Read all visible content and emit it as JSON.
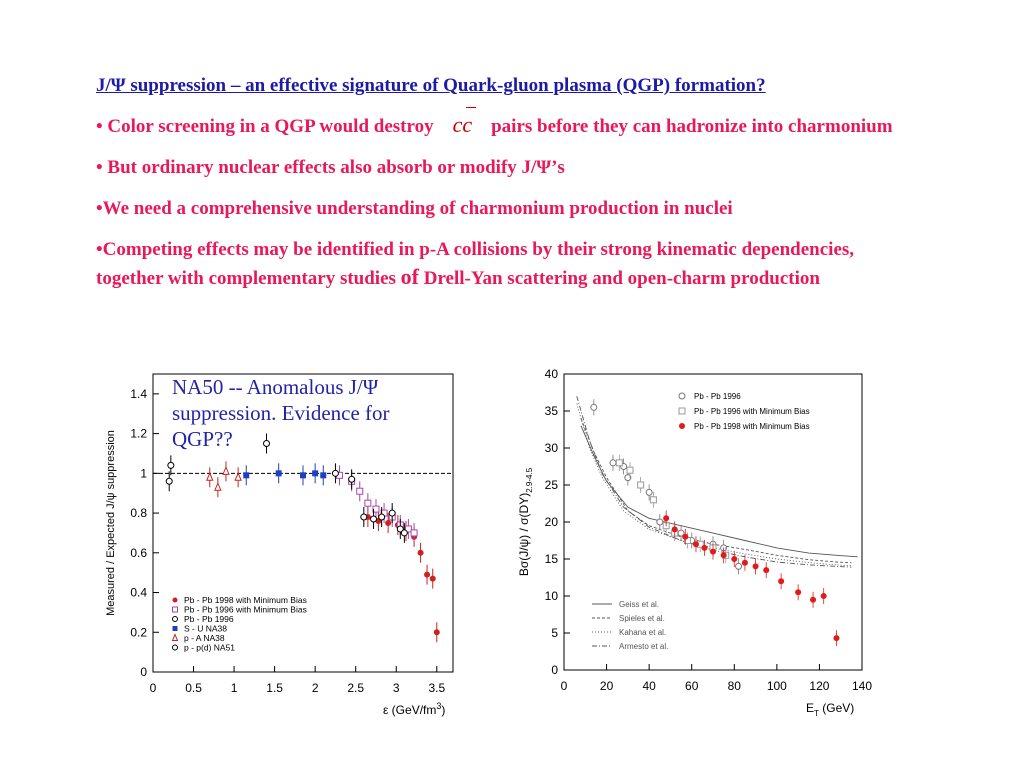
{
  "text": {
    "title": "J/Ψ suppression – an effective signature of Quark-gluon plasma (QGP) formation?",
    "b1_pre": "• Color screening in a QGP would destroy",
    "b1_cc": "cc",
    "b1_post": "pairs before they can hadronize into charmonium",
    "b2": "• But ordinary nuclear effects also absorb or modify J/Ψ’s",
    "b3": "•We need a comprehensive understanding of charmonium production in nuclei",
    "b4_pre": "•Competing effects may be identified in p-A collisions by their strong kinematic dependencies, together with complementary studies ",
    "b4_of": "of",
    "b4_post": " Drell-Yan scattering and open-charm production",
    "caption": "NA50 -- Anomalous J/Ψ suppression. Evidence for QGP??"
  },
  "chart_data": [
    {
      "type": "scatter",
      "ylabel": "Measured / Expected  J/ψ suppression",
      "xlabel": "ε  (GeV/fm",
      "xlabel_sup": "3",
      "xlabel_close": ")",
      "xlim": [
        0,
        3.7
      ],
      "ylim": [
        0,
        1.5
      ],
      "xticks": [
        "0",
        "0.5",
        "1",
        "1.5",
        "2",
        "2.5",
        "3",
        "3.5"
      ],
      "xtick_values": [
        0,
        0.5,
        1,
        1.5,
        2,
        2.5,
        3,
        3.5
      ],
      "yticks": [
        "0",
        "0.2",
        "0.4",
        "0.6",
        "0.8",
        "1",
        "1.2",
        "1.4"
      ],
      "ytick_values": [
        0,
        0.2,
        0.4,
        0.6,
        0.8,
        1,
        1.2,
        1.4
      ],
      "reference_line": 1,
      "legend": [
        {
          "label": "Pb - Pb 1998 with Minimum Bias",
          "marker": "filled-circle",
          "color": "#cc2222"
        },
        {
          "label": "Pb - Pb 1996 with Minimum Bias",
          "marker": "open-square",
          "color": "#aa44aa"
        },
        {
          "label": "Pb - Pb 1996",
          "marker": "open-circle",
          "color": "#000000"
        },
        {
          "label": "S - U     NA38",
          "marker": "filled-square",
          "color": "#1f3fbf"
        },
        {
          "label": "p - A     NA38",
          "marker": "open-triangle",
          "color": "#cc2222"
        },
        {
          "label": "p - p(d)  NA51",
          "marker": "open-circle",
          "color": "#000000"
        }
      ],
      "series": [
        {
          "name": "Pb - Pb 1998 with Minimum Bias",
          "marker": "filled-circle",
          "color": "#cc2222",
          "points": [
            [
              2.65,
              0.78
            ],
            [
              2.78,
              0.76
            ],
            [
              2.9,
              0.75
            ],
            [
              3.02,
              0.74
            ],
            [
              3.12,
              0.71
            ],
            [
              3.22,
              0.68
            ],
            [
              3.3,
              0.6
            ],
            [
              3.38,
              0.49
            ],
            [
              3.45,
              0.47
            ],
            [
              3.5,
              0.2
            ]
          ]
        },
        {
          "name": "Pb - Pb 1996 with Minimum Bias",
          "marker": "open-square",
          "color": "#aa44aa",
          "points": [
            [
              2.3,
              0.99
            ],
            [
              2.45,
              0.96
            ],
            [
              2.55,
              0.91
            ],
            [
              2.65,
              0.85
            ],
            [
              2.75,
              0.82
            ],
            [
              2.85,
              0.8
            ],
            [
              2.95,
              0.78
            ],
            [
              3.05,
              0.74
            ],
            [
              3.15,
              0.72
            ],
            [
              3.22,
              0.7
            ]
          ]
        },
        {
          "name": "Pb - Pb 1996",
          "marker": "open-circle",
          "color": "#000000",
          "points": [
            [
              2.25,
              1.0
            ],
            [
              2.45,
              0.97
            ],
            [
              2.6,
              0.78
            ],
            [
              2.72,
              0.77
            ],
            [
              2.82,
              0.78
            ],
            [
              2.95,
              0.8
            ],
            [
              3.05,
              0.72
            ],
            [
              3.1,
              0.7
            ]
          ]
        },
        {
          "name": "S - U NA38",
          "marker": "filled-square",
          "color": "#1f3fbf",
          "points": [
            [
              1.15,
              0.99
            ],
            [
              1.55,
              1.0
            ],
            [
              1.85,
              0.99
            ],
            [
              2.0,
              1.0
            ],
            [
              2.1,
              0.99
            ]
          ]
        },
        {
          "name": "p - A NA38",
          "marker": "open-triangle",
          "color": "#cc2222",
          "points": [
            [
              0.7,
              0.98
            ],
            [
              0.8,
              0.93
            ],
            [
              0.9,
              1.01
            ],
            [
              1.05,
              0.98
            ]
          ]
        },
        {
          "name": "p - p(d) NA51",
          "marker": "open-circle",
          "color": "#000000",
          "points": [
            [
              0.2,
              0.96
            ],
            [
              0.22,
              1.04
            ],
            [
              1.4,
              1.15
            ]
          ]
        }
      ]
    },
    {
      "type": "scatter",
      "ylabel": "Bσ(J/ψ) / σ(DY)",
      "ylabel_sub": "2.9-4.5",
      "xlabel": "E",
      "xlabel_sub": "T",
      "xlabel_rest": " (GeV)",
      "xlim": [
        0,
        140
      ],
      "ylim": [
        0,
        40
      ],
      "xticks": [
        "0",
        "20",
        "40",
        "60",
        "80",
        "100",
        "120",
        "140"
      ],
      "xtick_values": [
        0,
        20,
        40,
        60,
        80,
        100,
        120,
        140
      ],
      "yticks": [
        "0",
        "5",
        "10",
        "15",
        "20",
        "25",
        "30",
        "35",
        "40"
      ],
      "ytick_values": [
        0,
        5,
        10,
        15,
        20,
        25,
        30,
        35,
        40
      ],
      "legend_top": [
        {
          "label": "Pb - Pb 1996",
          "marker": "open-circle",
          "color": "#777777"
        },
        {
          "label": "Pb - Pb 1996 with Minimum Bias",
          "marker": "open-square",
          "color": "#999999"
        },
        {
          "label": "Pb - Pb 1998 with Minimum Bias",
          "marker": "filled-circle",
          "color": "#e01b1b"
        }
      ],
      "legend_bottom": [
        {
          "label": "Geiss et al.",
          "dash": ""
        },
        {
          "label": "Spieles et al.",
          "dash": "3,2"
        },
        {
          "label": "Kahana et al.",
          "dash": "1,2"
        },
        {
          "label": "Armesto et al.",
          "dash": "5,2,1,2"
        }
      ],
      "series": [
        {
          "name": "Pb - Pb 1996",
          "marker": "open-circle",
          "color": "#777777",
          "points": [
            [
              14,
              35.5
            ],
            [
              23,
              28
            ],
            [
              28,
              27.5
            ],
            [
              30,
              26
            ],
            [
              40,
              24
            ],
            [
              45,
              20
            ],
            [
              55,
              18.5
            ],
            [
              60,
              17.5
            ],
            [
              70,
              17
            ],
            [
              75,
              16.5
            ],
            [
              82,
              14
            ]
          ]
        },
        {
          "name": "Pb - Pb 1996 with Minimum Bias",
          "marker": "open-square",
          "color": "#999999",
          "points": [
            [
              26,
              28
            ],
            [
              31,
              27
            ],
            [
              36,
              25
            ],
            [
              42,
              23
            ],
            [
              48,
              19.5
            ],
            [
              52,
              18.5
            ],
            [
              58,
              17.5
            ],
            [
              64,
              17
            ],
            [
              70,
              16.5
            ],
            [
              76,
              15.5
            ]
          ]
        },
        {
          "name": "Pb - Pb 1998 with Minimum Bias",
          "marker": "filled-circle",
          "color": "#e01b1b",
          "points": [
            [
              48,
              20.5
            ],
            [
              52,
              19
            ],
            [
              57,
              18
            ],
            [
              62,
              17
            ],
            [
              66,
              16.5
            ],
            [
              70,
              16
            ],
            [
              75,
              15.5
            ],
            [
              80,
              15
            ],
            [
              85,
              14.5
            ],
            [
              90,
              14
            ],
            [
              95,
              13.5
            ],
            [
              102,
              12
            ],
            [
              110,
              10.5
            ],
            [
              117,
              9.5
            ],
            [
              122,
              10
            ],
            [
              128,
              4.3
            ]
          ]
        },
        {
          "name": "Geiss et al.",
          "line": true,
          "dash": "",
          "points": [
            [
              8,
              33
            ],
            [
              14,
              29
            ],
            [
              20,
              25.5
            ],
            [
              30,
              22
            ],
            [
              40,
              20.5
            ],
            [
              55,
              19.5
            ],
            [
              70,
              18.5
            ],
            [
              85,
              17.5
            ],
            [
              100,
              16.5
            ],
            [
              115,
              15.8
            ],
            [
              128,
              15.5
            ],
            [
              138,
              15.3
            ]
          ]
        },
        {
          "name": "Spieles et al.",
          "line": true,
          "dash": "3,2",
          "points": [
            [
              8,
              34
            ],
            [
              14,
              29.5
            ],
            [
              20,
              26
            ],
            [
              30,
              21.5
            ],
            [
              40,
              19.5
            ],
            [
              55,
              18
            ],
            [
              70,
              17
            ],
            [
              85,
              16.3
            ],
            [
              100,
              15.5
            ],
            [
              115,
              14.9
            ],
            [
              128,
              14.6
            ],
            [
              135,
              14.5
            ]
          ]
        },
        {
          "name": "Kahana et al.",
          "line": true,
          "dash": "1,2",
          "points": [
            [
              6,
              36
            ],
            [
              12,
              30
            ],
            [
              18,
              26
            ],
            [
              28,
              21.5
            ],
            [
              40,
              19
            ],
            [
              55,
              17.5
            ],
            [
              70,
              16.5
            ],
            [
              85,
              15.7
            ],
            [
              100,
              15
            ],
            [
              115,
              14.5
            ],
            [
              128,
              14.2
            ],
            [
              135,
              14.1
            ]
          ]
        },
        {
          "name": "Armesto et al.",
          "line": true,
          "dash": "5,2,1,2",
          "points": [
            [
              6,
              37
            ],
            [
              12,
              31
            ],
            [
              18,
              26.5
            ],
            [
              28,
              22
            ],
            [
              40,
              19.3
            ],
            [
              55,
              17.5
            ],
            [
              70,
              16.2
            ],
            [
              85,
              15.3
            ],
            [
              100,
              14.6
            ],
            [
              115,
              14.2
            ],
            [
              128,
              14
            ],
            [
              135,
              13.9
            ]
          ]
        }
      ]
    }
  ]
}
